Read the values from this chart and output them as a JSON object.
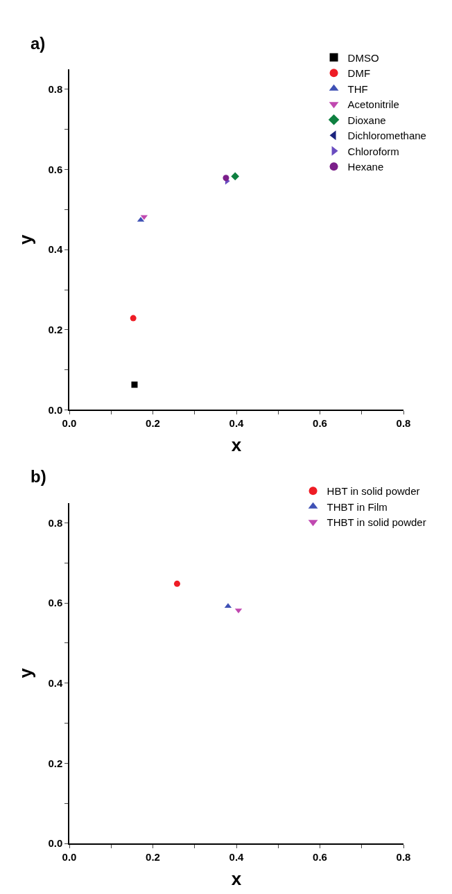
{
  "chart_data": [
    {
      "type": "scatter",
      "title": "a)",
      "xlabel": "x",
      "ylabel": "y",
      "xlim": [
        0,
        0.8
      ],
      "ylim": [
        0,
        0.85
      ],
      "xticks": [
        {
          "value": 0,
          "label": "0.0"
        },
        {
          "value": 0.1,
          "label": null
        },
        0.2,
        {
          "value": 0.3,
          "label": null
        },
        0.4,
        {
          "value": 0.5,
          "label": null
        },
        0.6,
        {
          "value": 0.7,
          "label": null
        },
        0.8
      ],
      "yticks": [
        {
          "value": 0,
          "label": "0.0"
        },
        {
          "value": 0.1,
          "label": null
        },
        0.2,
        {
          "value": 0.3,
          "label": null
        },
        0.4,
        {
          "value": 0.5,
          "label": null
        },
        0.6,
        {
          "value": 0.7,
          "label": null
        },
        0.8
      ],
      "legend": "top right",
      "series": [
        {
          "name": "DMSO",
          "color": "#000000",
          "marker": "square",
          "x": [
            0.156
          ],
          "values": [
            0.063
          ]
        },
        {
          "name": "DMF",
          "color": "#ee1c25",
          "marker": "circle",
          "x": [
            0.153
          ],
          "values": [
            0.229
          ]
        },
        {
          "name": "THF",
          "color": "#3f51b5",
          "marker": "triangle",
          "x": [
            0.171
          ],
          "values": [
            0.474
          ]
        },
        {
          "name": "Acetonitrile",
          "color": "#c048b0",
          "marker": "triangle-down",
          "x": [
            0.179
          ],
          "values": [
            0.482
          ]
        },
        {
          "name": "Dioxane",
          "color": "#0e8040",
          "marker": "diamond",
          "x": [
            0.397
          ],
          "values": [
            0.583
          ]
        },
        {
          "name": "Dichloromethane",
          "color": "#1a237e",
          "marker": "triangle-left",
          "x": [
            null
          ],
          "values": [
            null
          ]
        },
        {
          "name": "Chloroform",
          "color": "#6a4cc0",
          "marker": "triangle-right",
          "x": [
            0.377
          ],
          "values": [
            0.571
          ]
        },
        {
          "name": "Hexane",
          "color": "#7b1f8a",
          "marker": "circle",
          "x": [
            0.375
          ],
          "values": [
            0.579
          ]
        }
      ]
    },
    {
      "type": "scatter",
      "title": "b)",
      "xlabel": "x",
      "ylabel": "y",
      "xlim": [
        0,
        0.8
      ],
      "ylim": [
        0,
        0.85
      ],
      "xticks": [
        {
          "value": 0,
          "label": "0.0"
        },
        {
          "value": 0.1,
          "label": null
        },
        0.2,
        {
          "value": 0.3,
          "label": null
        },
        0.4,
        {
          "value": 0.5,
          "label": null
        },
        0.6,
        {
          "value": 0.7,
          "label": null
        },
        0.8
      ],
      "yticks": [
        {
          "value": 0,
          "label": "0.0"
        },
        {
          "value": 0.1,
          "label": null
        },
        0.2,
        {
          "value": 0.3,
          "label": null
        },
        0.4,
        {
          "value": 0.5,
          "label": null
        },
        0.6,
        {
          "value": 0.7,
          "label": null
        },
        0.8
      ],
      "legend": "top right",
      "series": [
        {
          "name": "HBT in solid powder",
          "color": "#ee1c25",
          "marker": "circle",
          "x": [
            0.258
          ],
          "values": [
            0.648
          ]
        },
        {
          "name": "THBT in Film",
          "color": "#3f51b5",
          "marker": "triangle",
          "x": [
            0.38
          ],
          "values": [
            0.592
          ]
        },
        {
          "name": "THBT in solid powder",
          "color": "#c048b0",
          "marker": "triangle-down",
          "x": [
            0.405
          ],
          "values": [
            0.582
          ]
        }
      ]
    }
  ]
}
